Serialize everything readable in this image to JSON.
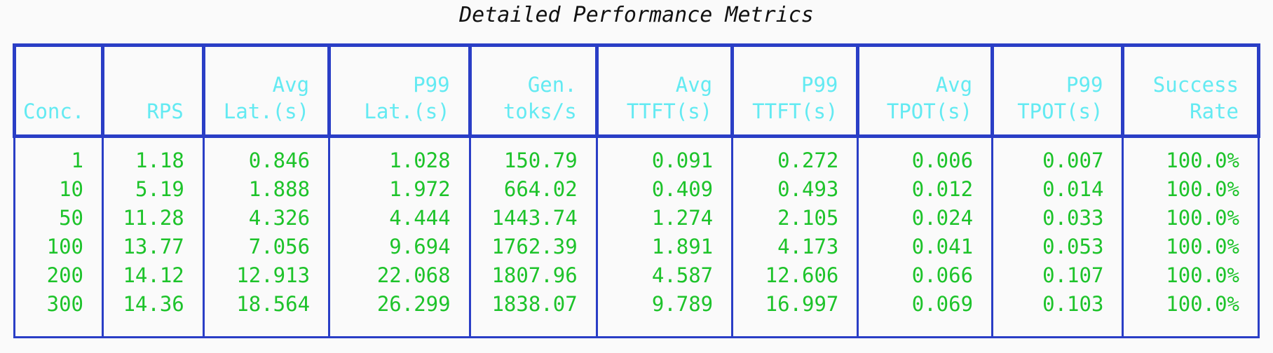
{
  "title": "Detailed Performance Metrics",
  "colors": {
    "border": "#2a3ec6",
    "header_text": "#63eaf2",
    "data_text": "#1dc32a",
    "background": "#fafafa",
    "title_text": "#111111"
  },
  "chart_data": {
    "type": "table",
    "title": "Detailed Performance Metrics",
    "columns": [
      "Conc.",
      "RPS",
      "Avg\nLat.(s)",
      "P99\nLat.(s)",
      "Gen.\ntoks/s",
      "Avg\nTTFT(s)",
      "P99\nTTFT(s)",
      "Avg\nTPOT(s)",
      "P99\nTPOT(s)",
      "Success\nRate"
    ],
    "rows": [
      [
        "1",
        "1.18",
        "0.846",
        "1.028",
        "150.79",
        "0.091",
        "0.272",
        "0.006",
        "0.007",
        "100.0%"
      ],
      [
        "10",
        "5.19",
        "1.888",
        "1.972",
        "664.02",
        "0.409",
        "0.493",
        "0.012",
        "0.014",
        "100.0%"
      ],
      [
        "50",
        "11.28",
        "4.326",
        "4.444",
        "1443.74",
        "1.274",
        "2.105",
        "0.024",
        "0.033",
        "100.0%"
      ],
      [
        "100",
        "13.77",
        "7.056",
        "9.694",
        "1762.39",
        "1.891",
        "4.173",
        "0.041",
        "0.053",
        "100.0%"
      ],
      [
        "200",
        "14.12",
        "12.913",
        "22.068",
        "1807.96",
        "4.587",
        "12.606",
        "0.066",
        "0.107",
        "100.0%"
      ],
      [
        "300",
        "14.36",
        "18.564",
        "26.299",
        "1838.07",
        "9.789",
        "16.997",
        "0.069",
        "0.103",
        "100.0%"
      ]
    ],
    "layout": {
      "header_position": "top",
      "header_align": "bottom-right (first column bottom-left)",
      "data_align": "right",
      "grid": "outer and column borders only, no row separators in body"
    }
  }
}
